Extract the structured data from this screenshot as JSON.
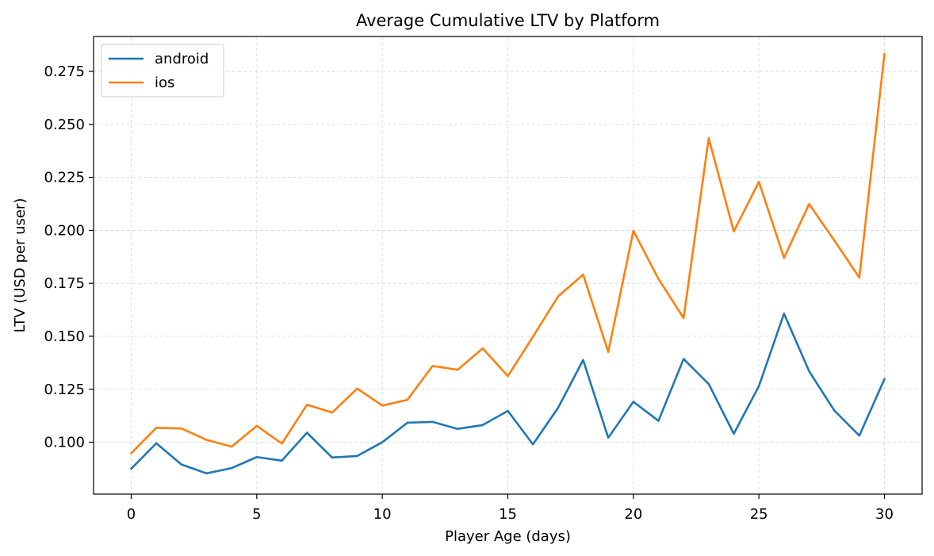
{
  "chart_data": {
    "type": "line",
    "title": "Average Cumulative LTV by Platform",
    "xlabel": "Player Age (days)",
    "ylabel": "LTV (USD per user)",
    "xlim": [
      -1.5,
      31.5
    ],
    "ylim": [
      0.0755,
      0.2915
    ],
    "x_ticks": [
      0,
      5,
      10,
      15,
      20,
      25,
      30
    ],
    "x_tick_labels": [
      "0",
      "5",
      "10",
      "15",
      "20",
      "25",
      "30"
    ],
    "y_ticks": [
      0.1,
      0.125,
      0.15,
      0.175,
      0.2,
      0.225,
      0.25,
      0.275
    ],
    "y_tick_labels": [
      "0.100",
      "0.125",
      "0.150",
      "0.175",
      "0.200",
      "0.225",
      "0.250",
      "0.275"
    ],
    "grid": true,
    "legend_position": "upper-left",
    "x": [
      0,
      1,
      2,
      3,
      4,
      5,
      6,
      7,
      8,
      9,
      10,
      11,
      12,
      13,
      14,
      15,
      16,
      17,
      18,
      19,
      20,
      21,
      22,
      23,
      24,
      25,
      26,
      27,
      28,
      29,
      30
    ],
    "series": [
      {
        "name": "android",
        "color": "#1f77b4",
        "values": [
          0.0875,
          0.0995,
          0.0895,
          0.0853,
          0.0878,
          0.093,
          0.0913,
          0.1045,
          0.0928,
          0.0935,
          0.1,
          0.1092,
          0.1096,
          0.1063,
          0.1081,
          0.1148,
          0.099,
          0.1162,
          0.1388,
          0.1021,
          0.1191,
          0.1101,
          0.1393,
          0.1275,
          0.104,
          0.1265,
          0.1607,
          0.1335,
          0.115,
          0.1031,
          0.1298
        ]
      },
      {
        "name": "ios",
        "color": "#ff7f0e",
        "values": [
          0.0948,
          0.1068,
          0.1065,
          0.1011,
          0.0979,
          0.1077,
          0.0994,
          0.1177,
          0.114,
          0.1253,
          0.1173,
          0.12,
          0.136,
          0.1342,
          0.1443,
          0.1312,
          0.1498,
          0.1688,
          0.1791,
          0.1426,
          0.1998,
          0.1771,
          0.1586,
          0.2435,
          0.1995,
          0.2229,
          0.187,
          0.2124,
          0.1953,
          0.1777,
          0.2833
        ]
      }
    ]
  }
}
